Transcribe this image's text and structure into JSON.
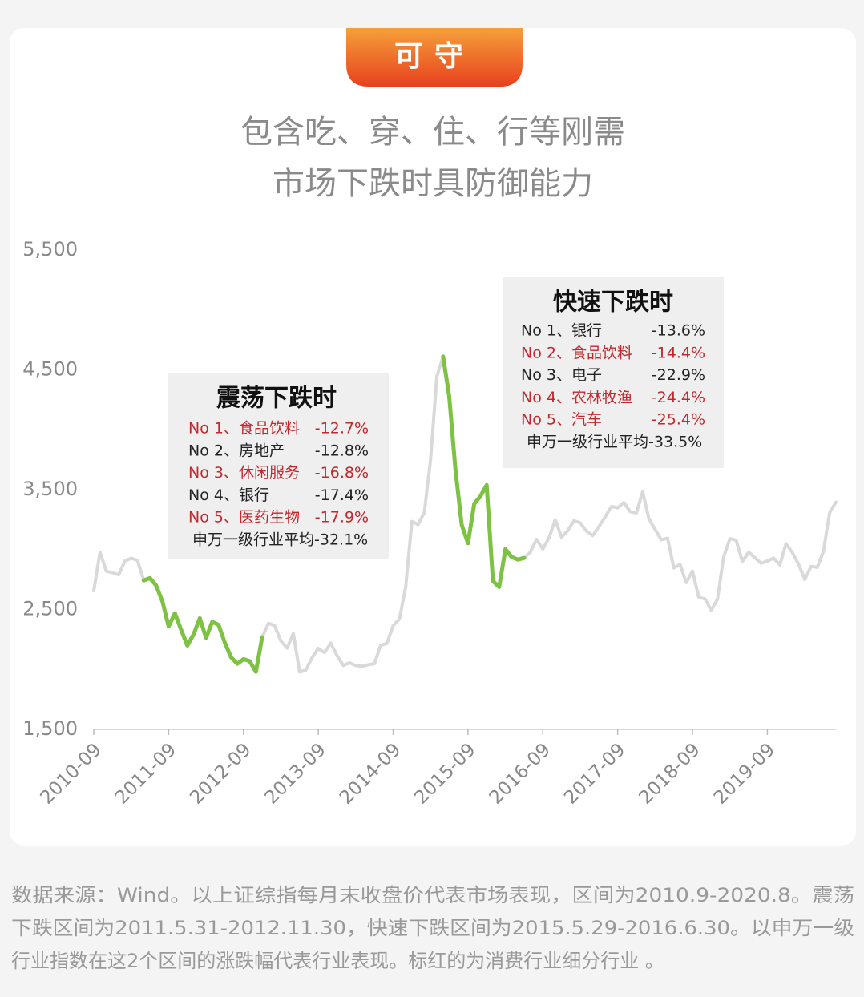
{
  "header": {
    "tab": "可守",
    "title_lines": [
      "包含吃、穿、住、行等刚需",
      "市场下跌时具防御能力"
    ]
  },
  "chart_data": {
    "type": "line",
    "x": [
      "2010-09",
      "2010-10",
      "2010-11",
      "2010-12",
      "2011-01",
      "2011-02",
      "2011-03",
      "2011-04",
      "2011-05",
      "2011-06",
      "2011-07",
      "2011-08",
      "2011-09",
      "2011-10",
      "2011-11",
      "2011-12",
      "2012-01",
      "2012-02",
      "2012-03",
      "2012-04",
      "2012-05",
      "2012-06",
      "2012-07",
      "2012-08",
      "2012-09",
      "2012-10",
      "2012-11",
      "2012-12",
      "2013-01",
      "2013-02",
      "2013-03",
      "2013-04",
      "2013-05",
      "2013-06",
      "2013-07",
      "2013-08",
      "2013-09",
      "2013-10",
      "2013-11",
      "2013-12",
      "2014-01",
      "2014-02",
      "2014-03",
      "2014-04",
      "2014-05",
      "2014-06",
      "2014-07",
      "2014-08",
      "2014-09",
      "2014-10",
      "2014-11",
      "2014-12",
      "2015-01",
      "2015-02",
      "2015-03",
      "2015-04",
      "2015-05",
      "2015-06",
      "2015-07",
      "2015-08",
      "2015-09",
      "2015-10",
      "2015-11",
      "2015-12",
      "2016-01",
      "2016-02",
      "2016-03",
      "2016-04",
      "2016-05",
      "2016-06",
      "2016-07",
      "2016-08",
      "2016-09",
      "2016-10",
      "2016-11",
      "2016-12",
      "2017-01",
      "2017-02",
      "2017-03",
      "2017-04",
      "2017-05",
      "2017-06",
      "2017-07",
      "2017-08",
      "2017-09",
      "2017-10",
      "2017-11",
      "2017-12",
      "2018-01",
      "2018-02",
      "2018-03",
      "2018-04",
      "2018-05",
      "2018-06",
      "2018-07",
      "2018-08",
      "2018-09",
      "2018-10",
      "2018-11",
      "2018-12",
      "2019-01",
      "2019-02",
      "2019-03",
      "2019-04",
      "2019-05",
      "2019-06",
      "2019-07",
      "2019-08",
      "2019-09",
      "2019-10",
      "2019-11",
      "2019-12",
      "2020-01",
      "2020-02",
      "2020-03",
      "2020-04",
      "2020-05",
      "2020-06",
      "2020-07",
      "2020-08"
    ],
    "series": [
      {
        "color": "#d9d9d9",
        "values": [
          2656,
          2979,
          2820,
          2808,
          2790,
          2905,
          2928,
          2911,
          2743,
          2762,
          2701,
          2568,
          2359,
          2469,
          2333,
          2199,
          2292,
          2428,
          2263,
          2397,
          2373,
          2225,
          2103,
          2047,
          2086,
          2069,
          1980,
          2269,
          2385,
          2366,
          2237,
          2178,
          2301,
          1979,
          1994,
          2098,
          2175,
          2141,
          2220,
          2116,
          2033,
          2056,
          2033,
          2026,
          2039,
          2048,
          2202,
          2217,
          2364,
          2420,
          2683,
          3235,
          3210,
          3310,
          3748,
          4442,
          4612,
          4277,
          3664,
          3206,
          3053,
          3383,
          3446,
          3539,
          2738,
          2688,
          3004,
          2938,
          2917,
          2930,
          2979,
          3085,
          3005,
          3100,
          3250,
          3104,
          3159,
          3242,
          3223,
          3155,
          3117,
          3192,
          3273,
          3361,
          3349,
          3393,
          3317,
          3307,
          3481,
          3259,
          3169,
          3082,
          3095,
          2847,
          2876,
          2725,
          2821,
          2603,
          2588,
          2494,
          2585,
          2941,
          3091,
          3078,
          2899,
          2979,
          2933,
          2886,
          2905,
          2929,
          2872,
          3050,
          2977,
          2880,
          2750,
          2860,
          2852,
          2985,
          3310,
          3396
        ]
      },
      {
        "color": "#7dc242",
        "values": [
          null,
          null,
          null,
          null,
          null,
          null,
          null,
          null,
          2743,
          2762,
          2701,
          2568,
          2359,
          2469,
          2333,
          2199,
          2292,
          2428,
          2263,
          2397,
          2373,
          2225,
          2103,
          2047,
          2086,
          2069,
          1980,
          2269,
          null,
          null,
          null,
          null,
          null,
          null,
          null,
          null,
          null,
          null,
          null,
          null,
          null,
          null,
          null,
          null,
          null,
          null,
          null,
          null,
          null,
          null,
          null,
          null,
          null,
          null,
          null,
          null,
          4612,
          4277,
          3664,
          3206,
          3053,
          3383,
          3446,
          3539,
          2738,
          2688,
          3004,
          2938,
          2917,
          2930,
          null,
          null,
          null,
          null,
          null,
          null,
          null,
          null,
          null,
          null,
          null,
          null,
          null,
          null,
          null,
          null,
          null,
          null,
          null,
          null,
          null,
          null,
          null,
          null,
          null,
          null,
          null,
          null,
          null,
          null,
          null,
          null,
          null,
          null,
          null,
          null,
          null,
          null,
          null,
          null,
          null,
          null,
          null,
          null,
          null,
          null,
          null,
          null,
          null,
          null
        ]
      }
    ],
    "xlim": [
      "2010-09",
      "2020-08"
    ],
    "xticks": [
      "2010-09",
      "2011-09",
      "2012-09",
      "2013-09",
      "2014-09",
      "2015-09",
      "2016-09",
      "2017-09",
      "2018-09",
      "2019-09"
    ],
    "ylim": [
      1500,
      5500
    ],
    "yticks": [
      {
        "value": 1500,
        "label": "1,500"
      },
      {
        "value": 2500,
        "label": "2,500"
      },
      {
        "value": 3500,
        "label": "3,500"
      },
      {
        "value": 4500,
        "label": "4,500"
      },
      {
        "value": 5500,
        "label": "5,500"
      }
    ],
    "annotations": [
      {
        "title": "震荡下跌时",
        "items": [
          {
            "label": "No 1、食品饮料",
            "value": "-12.7%",
            "color": "#c0282d"
          },
          {
            "label": "No 2、房地产",
            "value": "-12.8%",
            "color": "#222222"
          },
          {
            "label": "No 3、休闲服务",
            "value": "-16.8%",
            "color": "#c0282d"
          },
          {
            "label": "No 4、银行",
            "value": "-17.4%",
            "color": "#222222"
          },
          {
            "label": "No 5、医药生物",
            "value": "-17.9%",
            "color": "#c0282d"
          }
        ],
        "footer": "申万一级行业平均-32.1%"
      },
      {
        "title": "快速下跌时",
        "items": [
          {
            "label": "No 1、银行",
            "value": "-13.6%",
            "color": "#222222"
          },
          {
            "label": "No 2、食品饮料",
            "value": "-14.4%",
            "color": "#c0282d"
          },
          {
            "label": "No 3、电子",
            "value": "-22.9%",
            "color": "#222222"
          },
          {
            "label": "No 4、农林牧渔",
            "value": "-24.4%",
            "color": "#c0282d"
          },
          {
            "label": "No 5、汽车",
            "value": "-25.4%",
            "color": "#c0282d"
          }
        ],
        "footer": "申万一级行业平均-33.5%"
      }
    ]
  },
  "footnote": [
    "数据来源：Wind。以上证综指每月末收盘价代表市场表现，区间为2010.9-2020.8。震荡",
    "下跌区间为2011.5.31-2012.11.30，快速下跌区间为2015.5.29-2016.6.30。以申万一级",
    "行业指数在这2个区间的涨跌幅代表行业表现。标红的为消费行业细分行业 。"
  ]
}
